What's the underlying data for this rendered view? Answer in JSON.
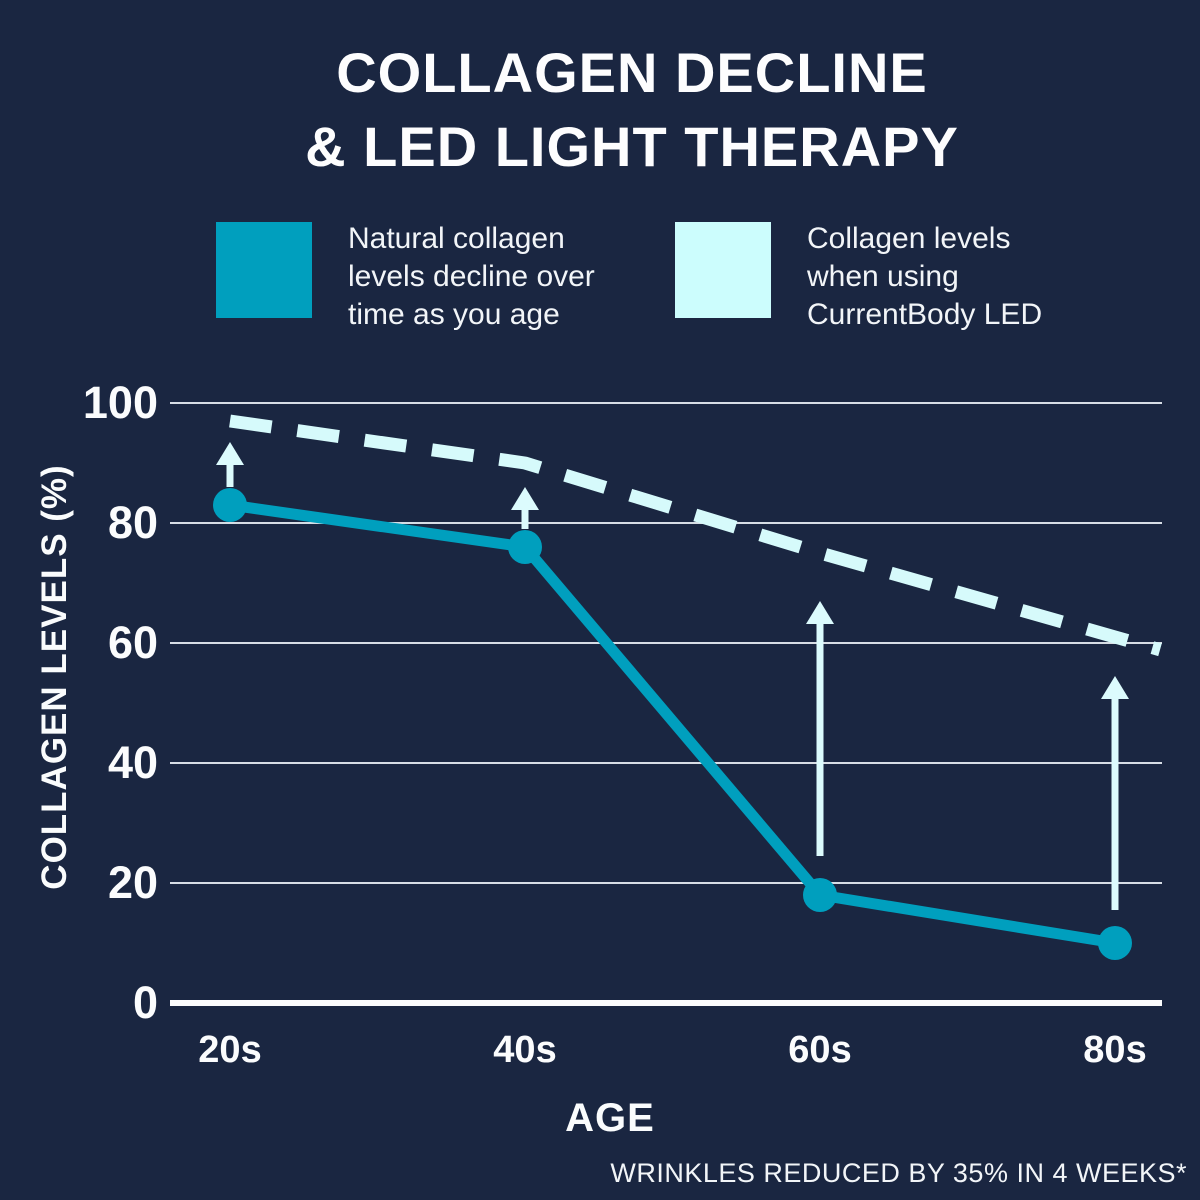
{
  "title": {
    "line1": "COLLAGEN DECLINE",
    "line2": "& LED LIGHT THERAPY"
  },
  "legend": {
    "items": [
      {
        "swatch_color": "#009fbe",
        "lines": [
          "Natural collagen",
          "levels decline over",
          "time as you age"
        ]
      },
      {
        "swatch_color": "#ccfdfd",
        "lines": [
          "Collagen levels",
          "when using",
          "CurrentBody LED"
        ]
      }
    ]
  },
  "chart_data": {
    "type": "line",
    "title": "COLLAGEN DECLINE & LED LIGHT THERAPY",
    "categories": [
      "20s",
      "40s",
      "60s",
      "80s"
    ],
    "series": [
      {
        "name": "Natural collagen levels decline over time as you age",
        "values": [
          83,
          76,
          18,
          10
        ],
        "style": "solid",
        "color": "#009fbe",
        "markers": true
      },
      {
        "name": "Collagen levels when using CurrentBody LED",
        "values": [
          97,
          90,
          75,
          61
        ],
        "style": "dashed",
        "color": "#d6fafb",
        "markers": false
      }
    ],
    "xlabel": "AGE",
    "ylabel": "COLLAGEN LEVELS (%)",
    "yticks": [
      0,
      20,
      40,
      60,
      80,
      100
    ],
    "ylim": [
      0,
      100
    ],
    "grid": true,
    "legend_position": "top",
    "annotations": {
      "arrows": [
        {
          "x": "20s",
          "from": 86,
          "to": 93.5
        },
        {
          "x": "40s",
          "from": 79,
          "to": 86
        },
        {
          "x": "60s",
          "from": 24.5,
          "to": 67
        },
        {
          "x": "80s",
          "from": 15.5,
          "to": 54.5
        }
      ],
      "arrow_color": "#dcfbfd"
    },
    "colors": {
      "grid": "#e8edf3",
      "axis": "#fbfcfd",
      "background": "#1a2641"
    }
  },
  "footnote": "WRINKLES REDUCED BY 35% IN 4 WEEKS*"
}
